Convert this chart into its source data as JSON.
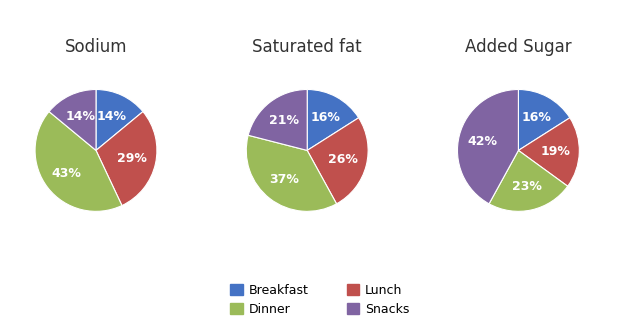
{
  "charts": [
    {
      "title": "Sodium",
      "values": [
        14,
        29,
        43,
        14
      ],
      "labels": [
        "14%",
        "29%",
        "43%",
        "14%"
      ],
      "startangle": 90
    },
    {
      "title": "Saturated fat",
      "values": [
        16,
        26,
        37,
        21
      ],
      "labels": [
        "16%",
        "26%",
        "37%",
        "21%"
      ],
      "startangle": 90
    },
    {
      "title": "Added Sugar",
      "values": [
        16,
        19,
        23,
        42
      ],
      "labels": [
        "16%",
        "19%",
        "23%",
        "42%"
      ],
      "startangle": 90
    }
  ],
  "categories": [
    "Breakfast",
    "Lunch",
    "Dinner",
    "Snacks"
  ],
  "colors": [
    "#4472C4",
    "#C0504D",
    "#9BBB59",
    "#8064A2"
  ],
  "background_color": "#FFFFFF",
  "title_fontsize": 12,
  "label_fontsize": 9
}
